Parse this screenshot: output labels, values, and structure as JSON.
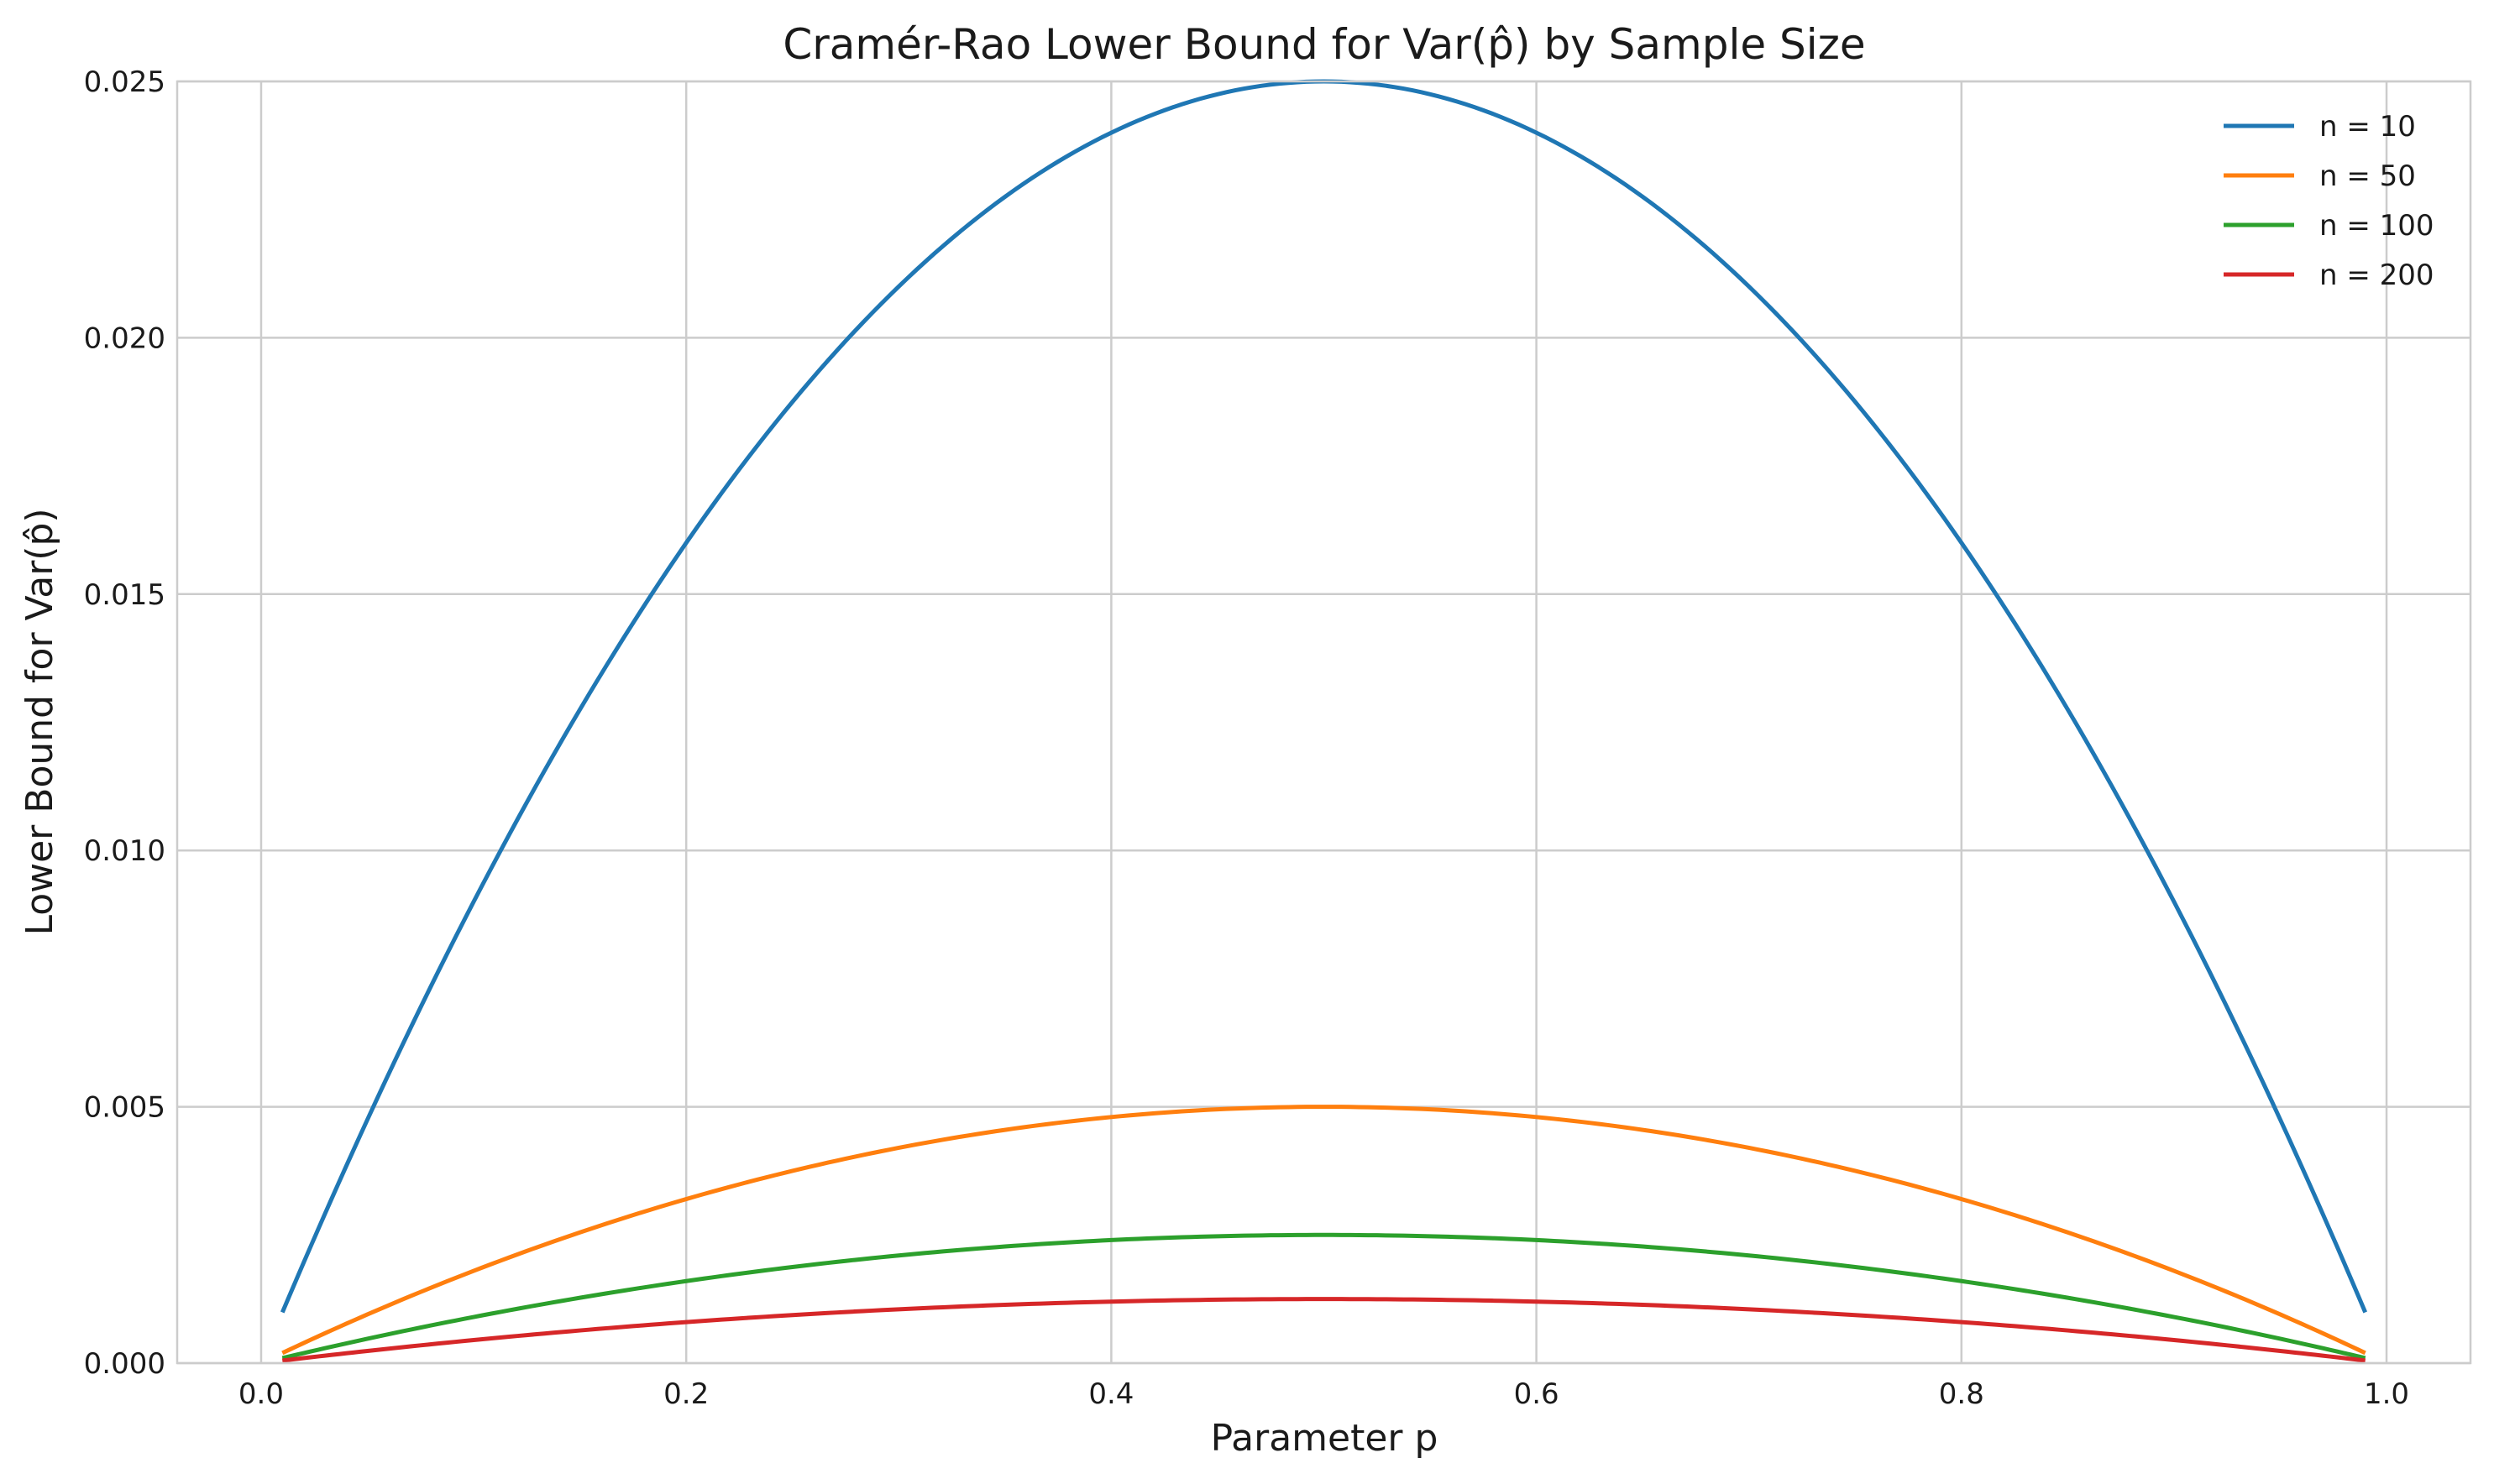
{
  "chart_data": {
    "type": "line",
    "title": "Cramér-Rao Lower Bound for Var(p̂) by Sample Size",
    "xlabel": "Parameter p",
    "ylabel": "Lower Bound for Var(p̂)",
    "xlim": [
      -0.0395,
      1.0395
    ],
    "ylim": [
      0.0,
      0.025
    ],
    "xticks": [
      0.0,
      0.2,
      0.4,
      0.6,
      0.8,
      1.0
    ],
    "xtick_labels": [
      "0.0",
      "0.2",
      "0.4",
      "0.6",
      "0.8",
      "1.0"
    ],
    "yticks": [
      0.0,
      0.005,
      0.01,
      0.015,
      0.02,
      0.025
    ],
    "ytick_labels": [
      "0.000",
      "0.005",
      "0.010",
      "0.015",
      "0.020",
      "0.025"
    ],
    "grid": true,
    "legend_position": "top-right",
    "x": [
      0.01,
      0.05,
      0.1,
      0.15,
      0.2,
      0.25,
      0.3,
      0.35,
      0.4,
      0.45,
      0.5,
      0.55,
      0.6,
      0.65,
      0.7,
      0.75,
      0.8,
      0.85,
      0.9,
      0.95,
      0.99
    ],
    "series": [
      {
        "name": "n = 10",
        "color": "#1f77b4",
        "values": [
          0.00099,
          0.00475,
          0.009,
          0.01275,
          0.016,
          0.01875,
          0.021,
          0.02275,
          0.024,
          0.02475,
          0.025,
          0.02475,
          0.024,
          0.02275,
          0.021,
          0.01875,
          0.016,
          0.01275,
          0.009,
          0.00475,
          0.00099
        ]
      },
      {
        "name": "n = 50",
        "color": "#ff7f0e",
        "values": [
          0.000198,
          0.00095,
          0.0018,
          0.00255,
          0.0032,
          0.00375,
          0.0042,
          0.00455,
          0.0048,
          0.00495,
          0.005,
          0.00495,
          0.0048,
          0.00455,
          0.0042,
          0.00375,
          0.0032,
          0.00255,
          0.0018,
          0.00095,
          0.000198
        ]
      },
      {
        "name": "n = 100",
        "color": "#2ca02c",
        "values": [
          9.9e-05,
          0.000475,
          0.0009,
          0.001275,
          0.0016,
          0.001875,
          0.0021,
          0.002275,
          0.0024,
          0.002475,
          0.0025,
          0.002475,
          0.0024,
          0.002275,
          0.0021,
          0.001875,
          0.0016,
          0.001275,
          0.0009,
          0.000475,
          9.9e-05
        ]
      },
      {
        "name": "n = 200",
        "color": "#d62728",
        "values": [
          4.95e-05,
          0.0002375,
          0.00045,
          0.0006375,
          0.0008,
          0.0009375,
          0.00105,
          0.0011375,
          0.0012,
          0.0012375,
          0.00125,
          0.0012375,
          0.0012,
          0.0011375,
          0.00105,
          0.0009375,
          0.0008,
          0.0006375,
          0.00045,
          0.0002375,
          4.95e-05
        ]
      }
    ]
  }
}
